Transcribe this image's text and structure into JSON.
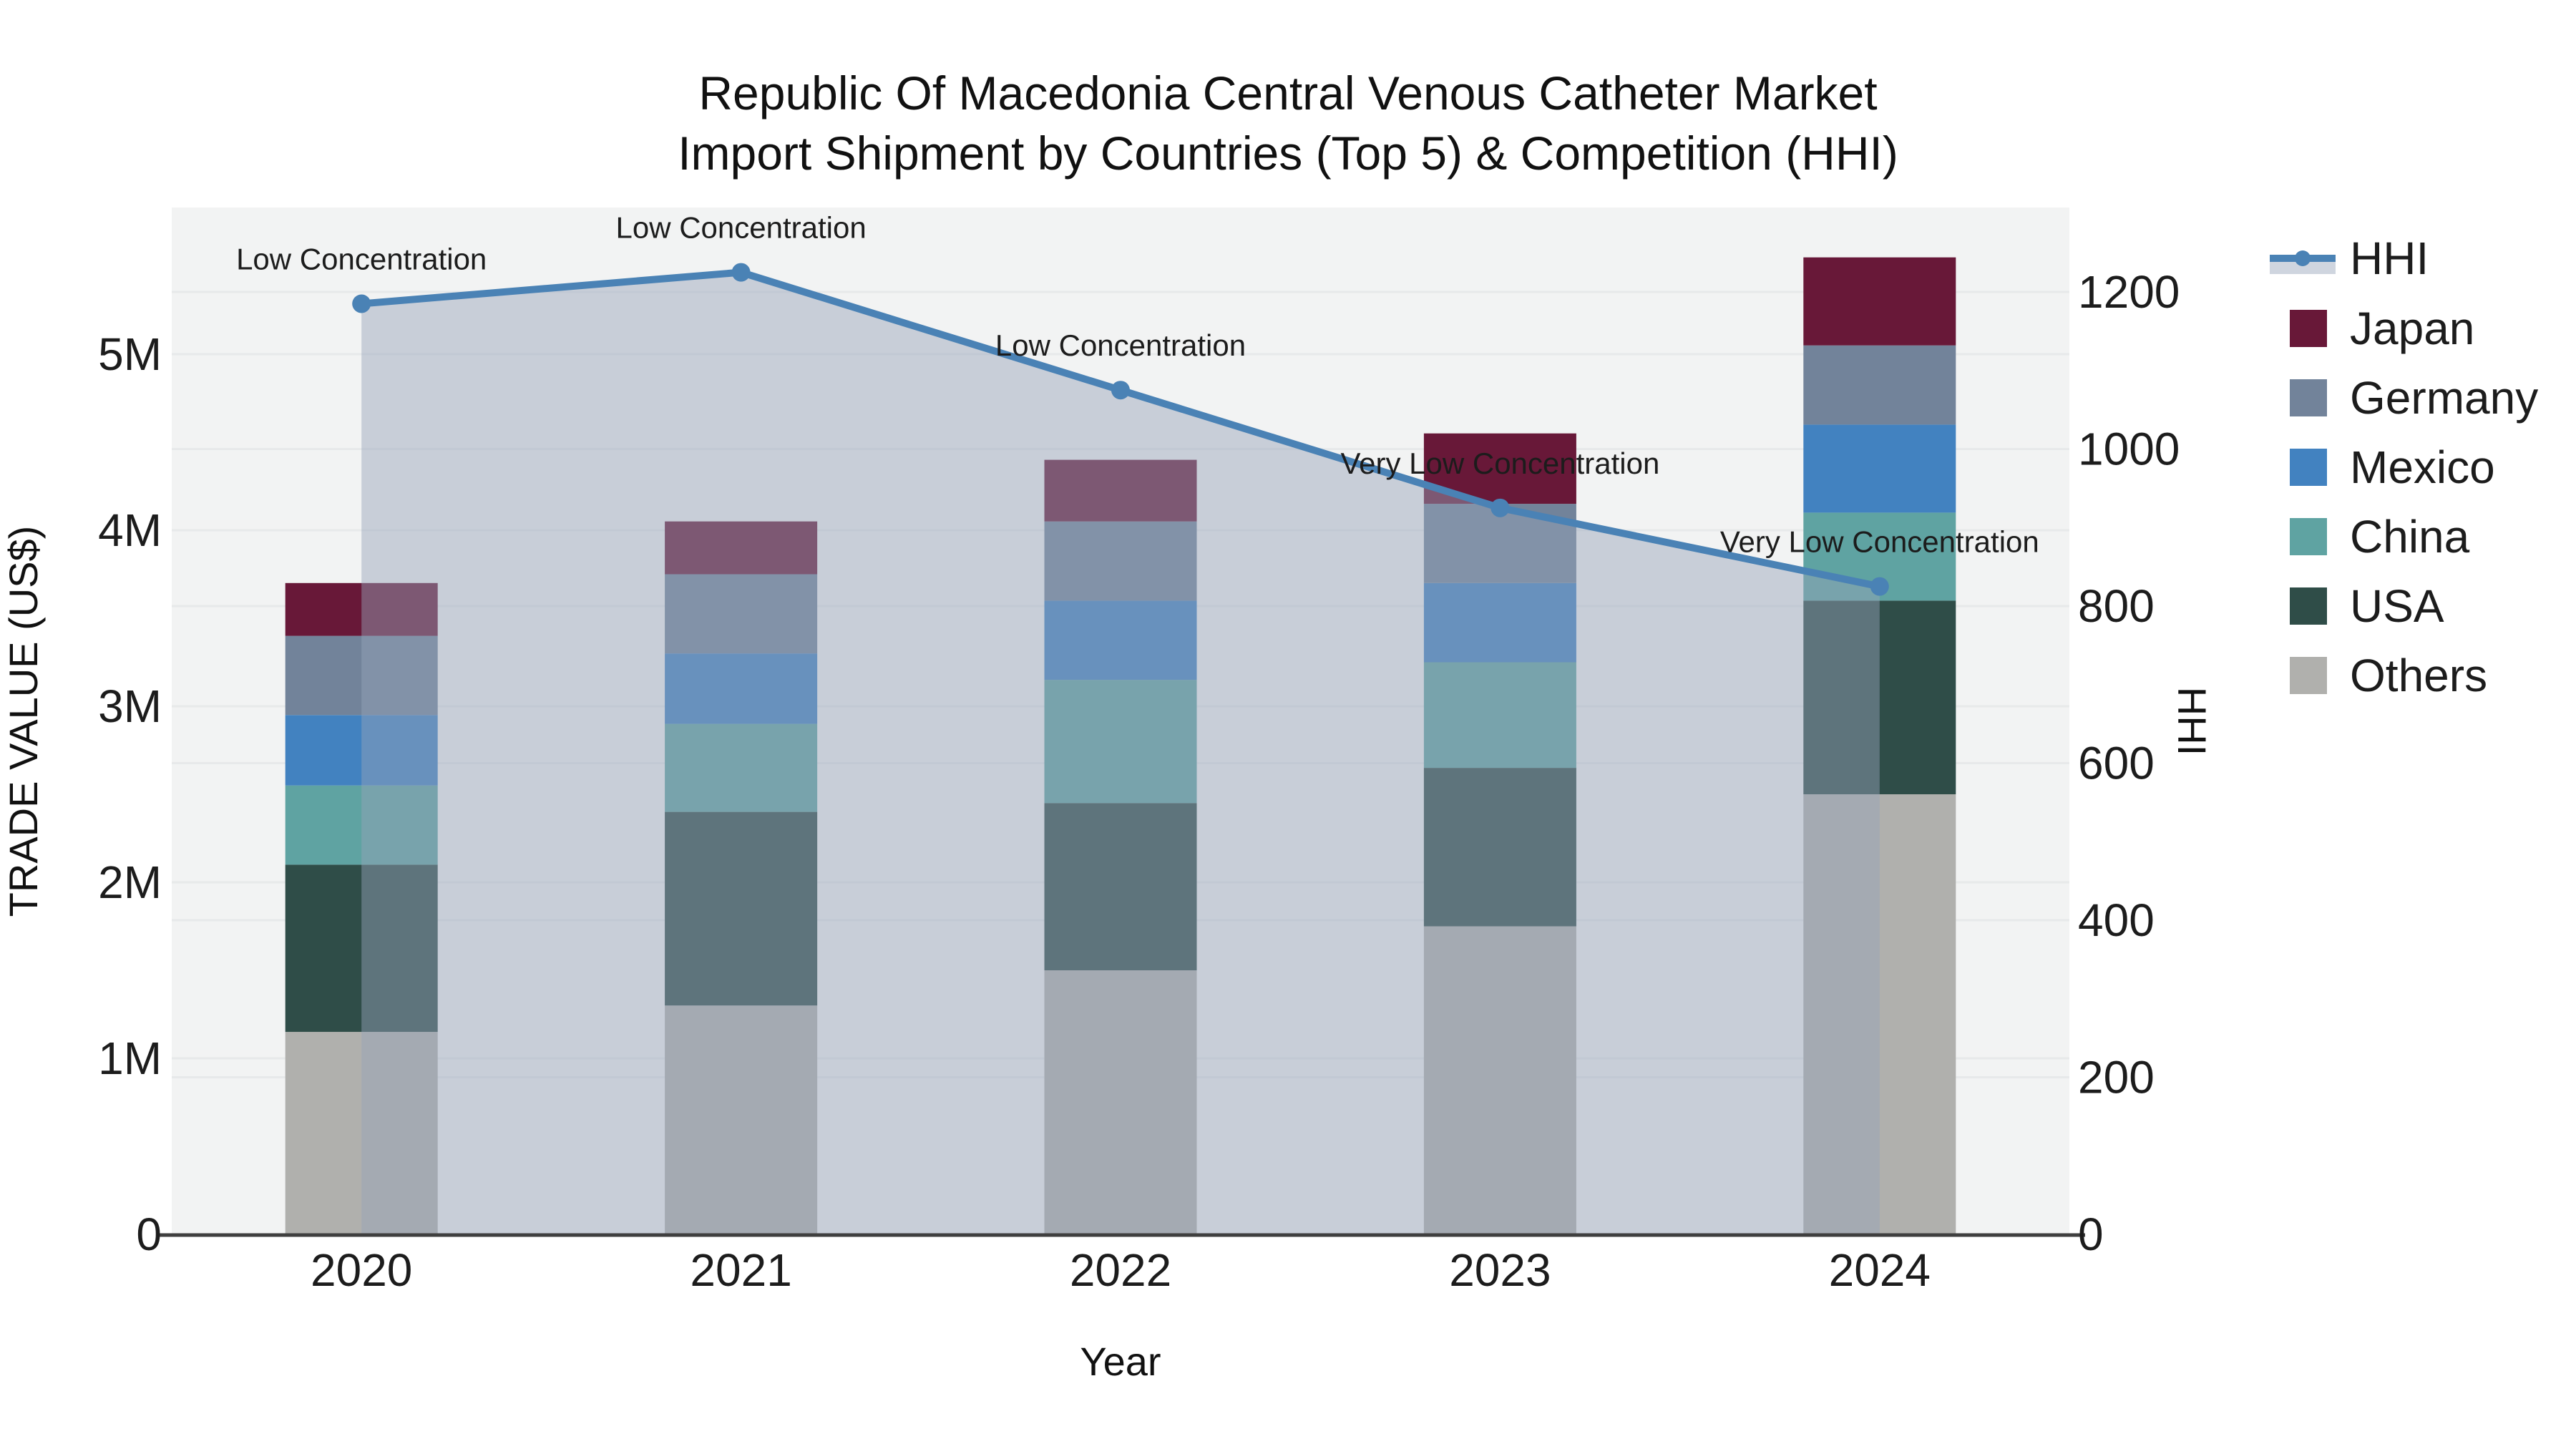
{
  "title": {
    "line1": "Republic Of Macedonia Central Venous Catheter Market",
    "line2": "Import Shipment by Countries (Top 5) & Competition (HHI)"
  },
  "chart_data": {
    "type": "bar+line",
    "title": "Republic Of Macedonia Central Venous Catheter Market Import Shipment by Countries (Top 5) & Competition (HHI)",
    "categories": [
      "2020",
      "2021",
      "2022",
      "2023",
      "2024"
    ],
    "bar_unit": "US$ millions",
    "stack_order_bottom_to_top": [
      "Others",
      "USA",
      "China",
      "Mexico",
      "Germany",
      "Japan"
    ],
    "series": [
      {
        "name": "Others",
        "color": "#b0b0ad",
        "values_musd": [
          1.15,
          1.3,
          1.5,
          1.75,
          2.5
        ]
      },
      {
        "name": "USA",
        "color": "#2f4d48",
        "values_musd": [
          0.95,
          1.1,
          0.95,
          0.9,
          1.1
        ]
      },
      {
        "name": "China",
        "color": "#5fa3a2",
        "values_musd": [
          0.45,
          0.5,
          0.7,
          0.6,
          0.5
        ]
      },
      {
        "name": "Mexico",
        "color": "#4282c0",
        "values_musd": [
          0.4,
          0.4,
          0.45,
          0.45,
          0.5
        ]
      },
      {
        "name": "Germany",
        "color": "#72839a",
        "values_musd": [
          0.45,
          0.45,
          0.45,
          0.45,
          0.45
        ]
      },
      {
        "name": "Japan",
        "color": "#681838",
        "values_musd": [
          0.3,
          0.3,
          0.35,
          0.4,
          0.5
        ]
      }
    ],
    "bar_totals_musd": [
      3.7,
      4.05,
      4.4,
      4.55,
      5.55
    ],
    "line_series": {
      "name": "HHI",
      "color": "#4a82b5",
      "area_fill": "rgba(150,163,185,0.46)",
      "values": [
        1185,
        1225,
        1075,
        925,
        825
      ]
    },
    "annotations": [
      {
        "x": "2020",
        "text": "Low Concentration"
      },
      {
        "x": "2021",
        "text": "Low Concentration"
      },
      {
        "x": "2022",
        "text": "Low Concentration"
      },
      {
        "x": "2023",
        "text": "Very Low Concentration"
      },
      {
        "x": "2024",
        "text": "Very Low Concentration"
      }
    ],
    "axes": {
      "x": {
        "title": "Year"
      },
      "left": {
        "title": "TRADE VALUE (US$)",
        "tick_labels": [
          "0",
          "1M",
          "2M",
          "3M",
          "4M",
          "5M"
        ],
        "tick_values_musd": [
          0,
          1,
          2,
          3,
          4,
          5
        ],
        "range_musd": [
          0,
          5.83
        ]
      },
      "right": {
        "title": "HHI",
        "tick_labels": [
          "0",
          "200",
          "400",
          "600",
          "800",
          "1000",
          "1200"
        ],
        "tick_values": [
          0,
          200,
          400,
          600,
          800,
          1000,
          1200
        ],
        "range": [
          0,
          1307
        ]
      }
    },
    "legend": [
      {
        "label": "HHI",
        "type": "line",
        "color": "#4a82b5"
      },
      {
        "label": "Japan",
        "type": "bar",
        "color": "#681838"
      },
      {
        "label": "Germany",
        "type": "bar",
        "color": "#72839a"
      },
      {
        "label": "Mexico",
        "type": "bar",
        "color": "#4282c0"
      },
      {
        "label": "China",
        "type": "bar",
        "color": "#5fa3a2"
      },
      {
        "label": "USA",
        "type": "bar",
        "color": "#2f4d48"
      },
      {
        "label": "Others",
        "type": "bar",
        "color": "#b0b0ad"
      }
    ],
    "layout_hints": {
      "grid": true,
      "legend_position": "right",
      "plot_bg": "#f2f3f3"
    }
  },
  "colors": {
    "page_bg": "#ffffff",
    "plot_bg": "#f2f3f3",
    "grid": "#e7e9ea",
    "axis_line": "#3f3f3f",
    "annotation_text": "#111111",
    "legend_area_band": "#cfd5df"
  }
}
